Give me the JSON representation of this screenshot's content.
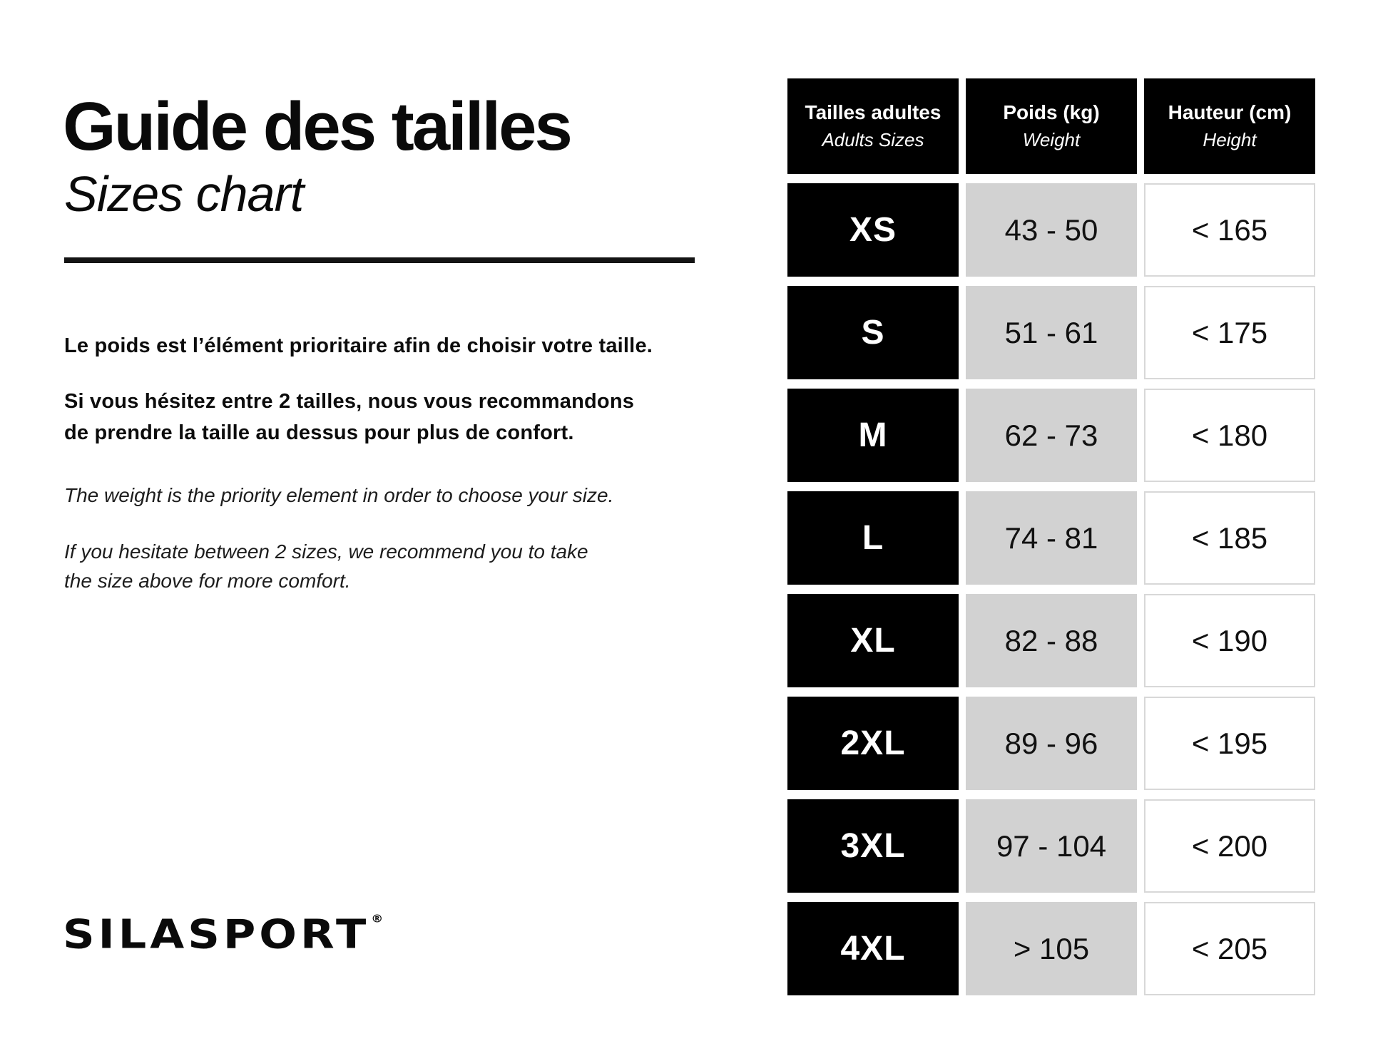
{
  "header": {
    "title_fr": "Guide des tailles",
    "title_en": "Sizes chart"
  },
  "intro": {
    "fr_1": "Le poids est l’élément prioritaire afin de choisir votre taille.",
    "fr_2": "Si vous hésitez entre 2 tailles, nous vous recommandons\nde prendre la taille au dessus pour plus de confort.",
    "en_1": "The weight is the priority element in order to choose your size.",
    "en_2": "If you hesitate between 2 sizes, we recommend you to take\nthe size above for more comfort."
  },
  "logo": {
    "text": "SILASPORT",
    "mark": "®"
  },
  "colors": {
    "cell_black": "#000000",
    "cell_gray": "#d2d2d2",
    "cell_border": "#d8d8d8",
    "text": "#000000",
    "background": "#ffffff"
  },
  "table": {
    "columns": [
      {
        "fr": "Tailles adultes",
        "en": "Adults Sizes"
      },
      {
        "fr": "Poids (kg)",
        "en": "Weight"
      },
      {
        "fr": "Hauteur (cm)",
        "en": "Height"
      }
    ],
    "rows": [
      {
        "size": "XS",
        "weight": "43 - 50",
        "height": "< 165"
      },
      {
        "size": "S",
        "weight": "51 - 61",
        "height": "< 175"
      },
      {
        "size": "M",
        "weight": "62 - 73",
        "height": "< 180"
      },
      {
        "size": "L",
        "weight": "74 - 81",
        "height": "< 185"
      },
      {
        "size": "XL",
        "weight": "82 - 88",
        "height": "< 190"
      },
      {
        "size": "2XL",
        "weight": "89 - 96",
        "height": "< 195"
      },
      {
        "size": "3XL",
        "weight": "97 - 104",
        "height": "< 200"
      },
      {
        "size": "4XL",
        "weight": "> 105",
        "height": "< 205"
      }
    ]
  }
}
